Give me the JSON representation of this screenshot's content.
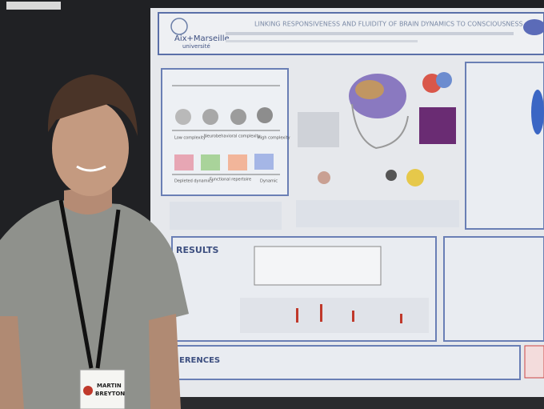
{
  "poster": {
    "title": "LINKING RESPONSIVENESS AND FLUIDITY OF BRAIN DYNAMICS TO CONSCIOUSNESS",
    "logo": [
      "Aix+Marseille",
      "université"
    ],
    "sections": {
      "results": "RESULTS",
      "references": "ERENCES"
    },
    "diagram_labels": [
      "Low complexity",
      "Neurobehavioral complexity",
      "High complexity",
      "Depleted dynamics",
      "Functional repertoire",
      "Dynamic"
    ]
  },
  "badge": {
    "name": [
      "MARTIN",
      "BREYTON"
    ]
  }
}
